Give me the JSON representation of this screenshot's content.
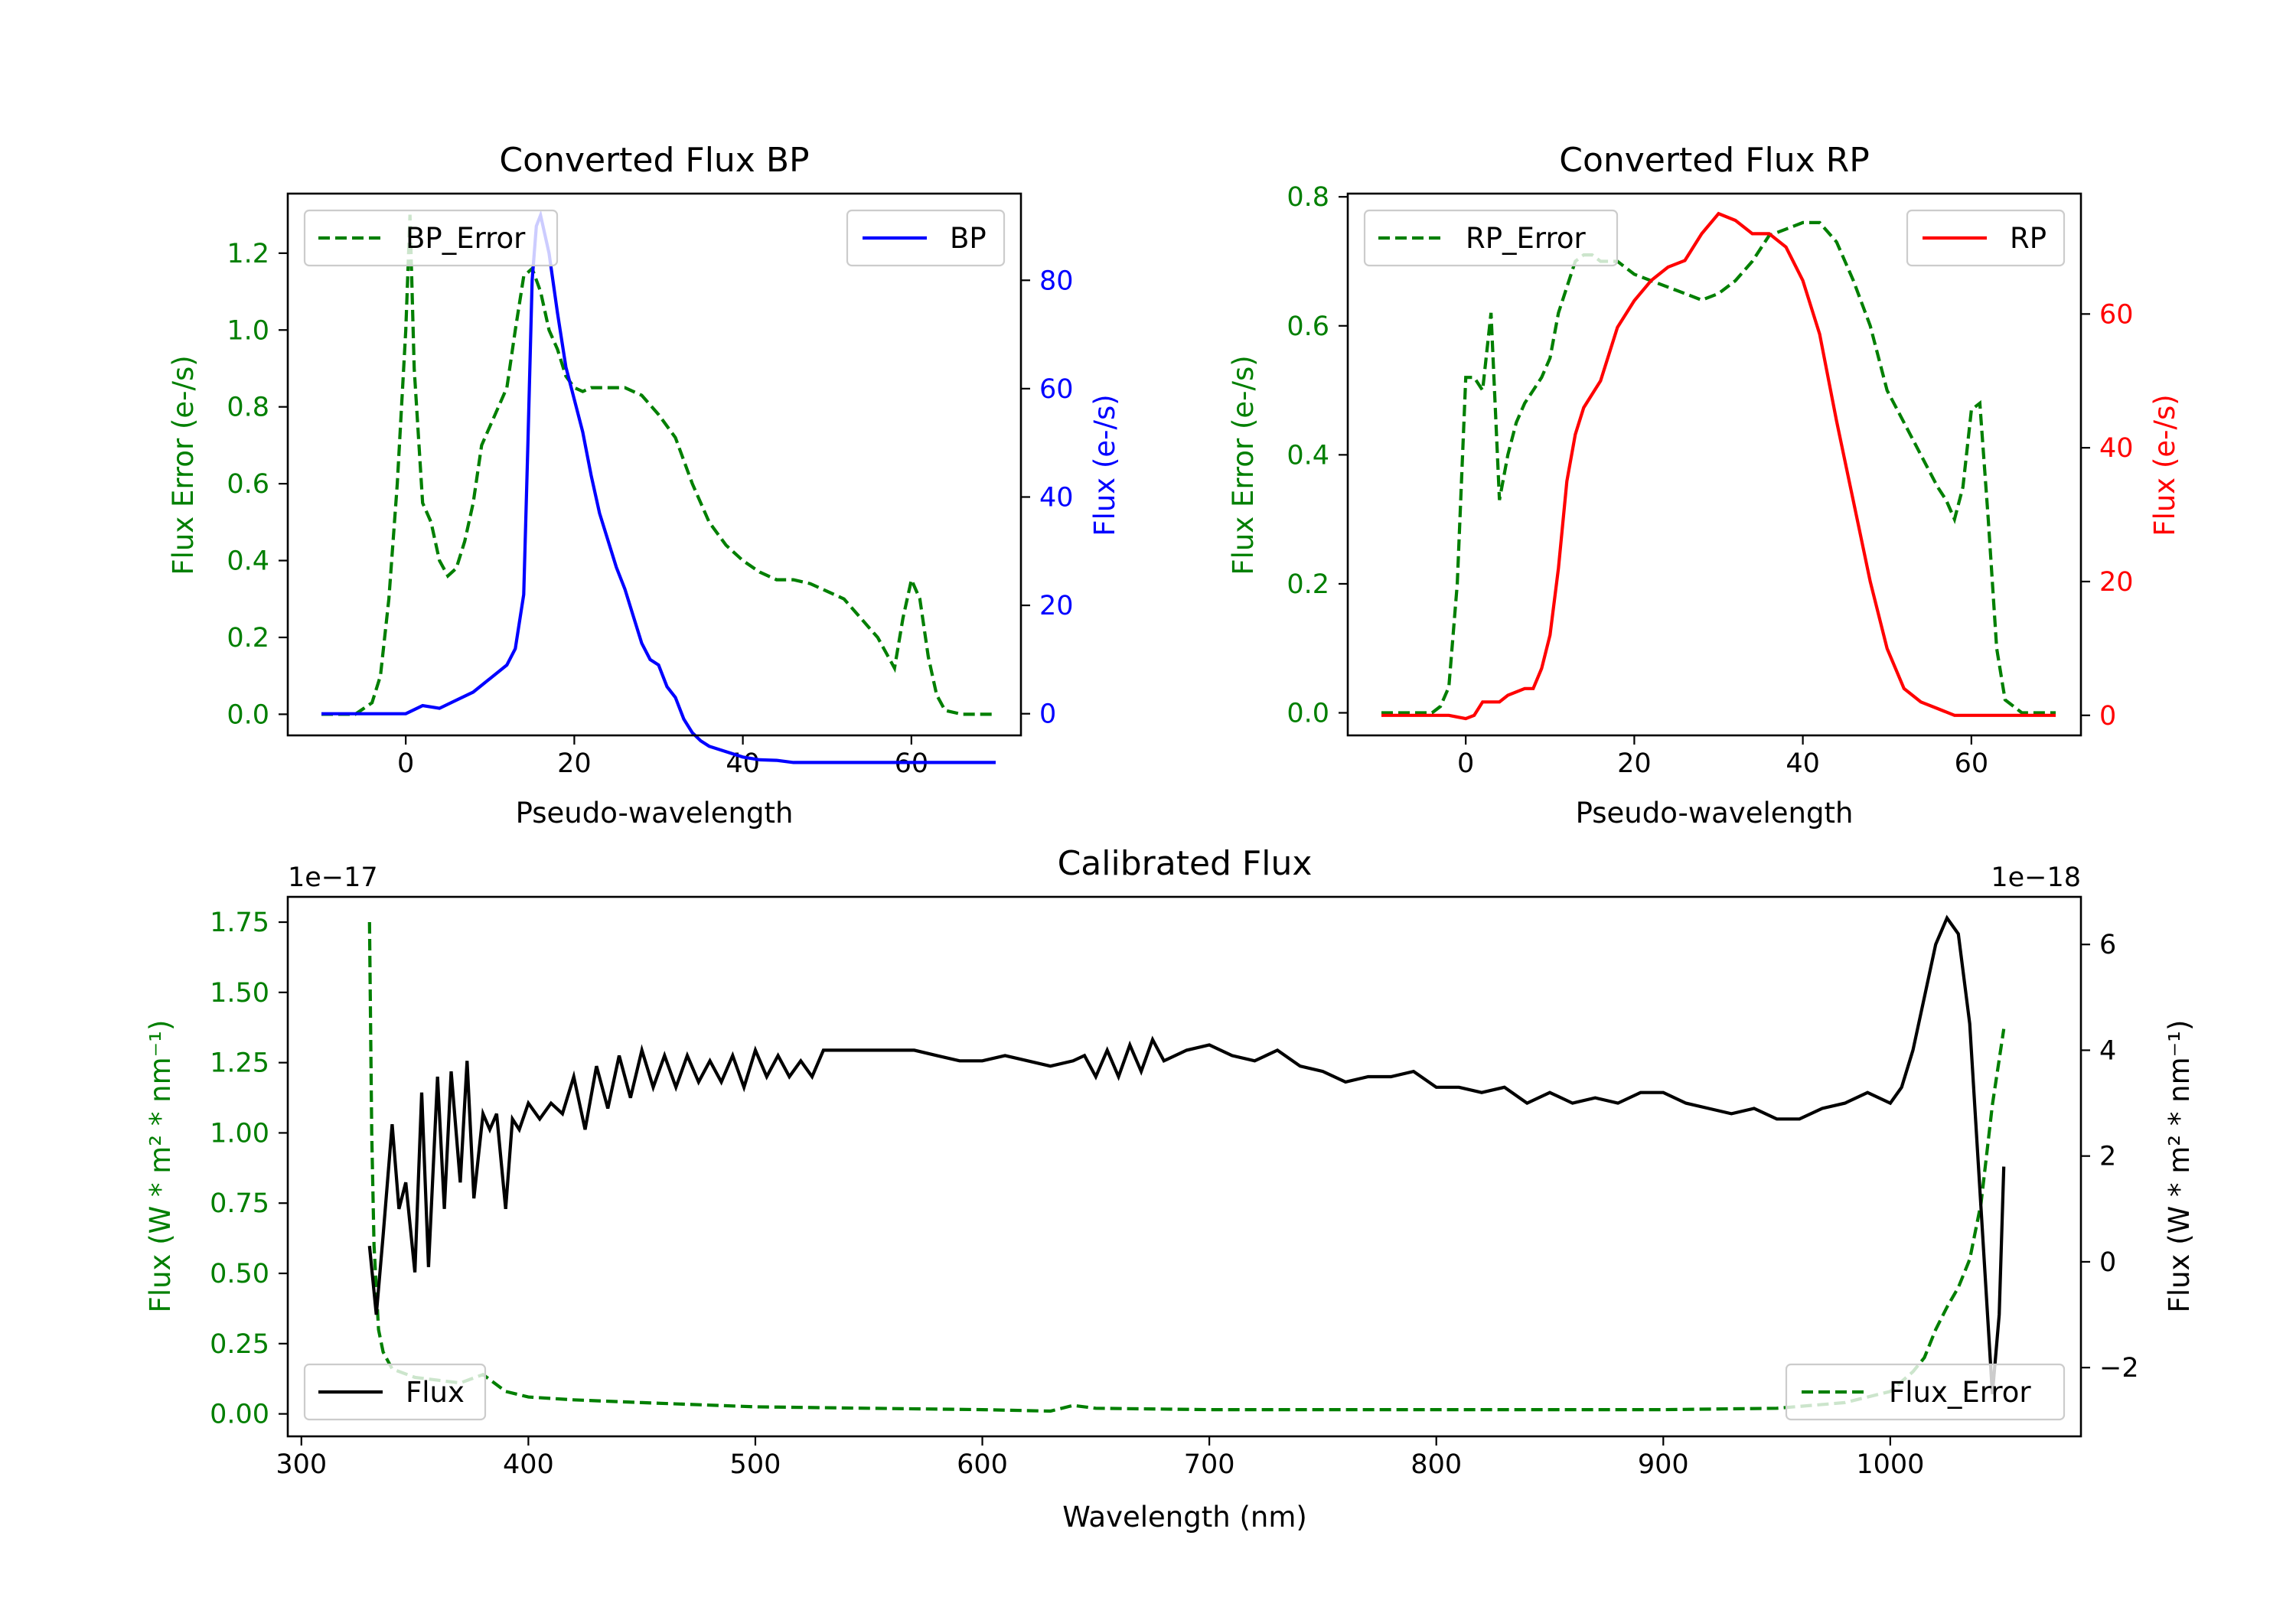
{
  "colors": {
    "green": "#007f00",
    "blue": "#0000ff",
    "red": "#ff0000",
    "black": "#000000"
  },
  "chart_data": [
    {
      "id": "bp",
      "type": "line",
      "title": "Converted Flux BP",
      "xlabel": "Pseudo-wavelength",
      "ylabel_left": "Flux Error (e-/s)",
      "ylabel_right": "Flux (e-/s)",
      "xlim": [
        -14,
        73
      ],
      "ylim_left": [
        -0.055,
        1.355
      ],
      "ylim_right": [
        -4,
        96
      ],
      "xticks": [
        0,
        20,
        40,
        60
      ],
      "yticks_left": [
        "0.0",
        "0.2",
        "0.4",
        "0.6",
        "0.8",
        "1.0",
        "1.2"
      ],
      "yticks_right": [
        "0",
        "20",
        "40",
        "60",
        "80"
      ],
      "series": [
        {
          "name": "BP_Error",
          "axis": "left",
          "style": "dashed",
          "color": "#007f00",
          "x": [
            -10,
            -6,
            -4,
            -3,
            -2,
            -1,
            0,
            0.5,
            1,
            2,
            3,
            4,
            5,
            6,
            7,
            8,
            9,
            10,
            11,
            12,
            13,
            14,
            15,
            16,
            17,
            18,
            19,
            20,
            21,
            22,
            24,
            26,
            28,
            30,
            32,
            34,
            36,
            38,
            40,
            42,
            44,
            46,
            48,
            50,
            52,
            54,
            56,
            57,
            58,
            59,
            60,
            61,
            62,
            63,
            64,
            66,
            70
          ],
          "y": [
            0,
            0,
            0.03,
            0.1,
            0.3,
            0.6,
            1.0,
            1.3,
            0.9,
            0.55,
            0.5,
            0.4,
            0.36,
            0.38,
            0.45,
            0.55,
            0.7,
            0.75,
            0.8,
            0.85,
            1.0,
            1.14,
            1.16,
            1.1,
            1.0,
            0.95,
            0.88,
            0.85,
            0.84,
            0.85,
            0.85,
            0.85,
            0.83,
            0.78,
            0.72,
            0.6,
            0.5,
            0.44,
            0.4,
            0.37,
            0.35,
            0.35,
            0.34,
            0.32,
            0.3,
            0.25,
            0.2,
            0.16,
            0.12,
            0.25,
            0.35,
            0.3,
            0.15,
            0.05,
            0.01,
            0,
            0
          ]
        },
        {
          "name": "BP",
          "axis": "right",
          "style": "solid",
          "color": "#0000ff",
          "x": [
            -10,
            -4,
            -2,
            0,
            2,
            4,
            6,
            8,
            10,
            12,
            13,
            14,
            14.5,
            15,
            15.5,
            16,
            17,
            18,
            19,
            20,
            21,
            22,
            23,
            24,
            25,
            26,
            27,
            28,
            29,
            30,
            31,
            32,
            33,
            34,
            35,
            36,
            38,
            40,
            42,
            44,
            46,
            48,
            50,
            52,
            54,
            56,
            58,
            60,
            62,
            64,
            66,
            70
          ],
          "y": [
            0,
            0,
            0,
            0,
            1.5,
            1,
            2.5,
            4,
            6.5,
            9,
            12,
            22,
            50,
            80,
            90,
            92,
            85,
            74,
            64,
            58,
            52,
            44,
            37,
            32,
            27,
            23,
            18,
            13,
            10,
            9,
            5,
            3,
            -1,
            -3.5,
            -5,
            -6,
            -7,
            -8,
            -8.5,
            -8.6,
            -9,
            -9,
            -9,
            -9,
            -9,
            -9,
            -9,
            -9,
            -9,
            -9,
            -9,
            -9
          ]
        }
      ],
      "legend": [
        {
          "label": "BP_Error",
          "placement": "upper-left"
        },
        {
          "label": "BP",
          "placement": "upper-right"
        }
      ]
    },
    {
      "id": "rp",
      "type": "line",
      "title": "Converted Flux RP",
      "xlabel": "Pseudo-wavelength",
      "ylabel_left": "Flux Error (e-/s)",
      "ylabel_right": "Flux (e-/s)",
      "xlim": [
        -14,
        73
      ],
      "ylim_left": [
        -0.035,
        0.805
      ],
      "ylim_right": [
        -3,
        78
      ],
      "xticks": [
        0,
        20,
        40,
        60
      ],
      "yticks_left": [
        "0.0",
        "0.2",
        "0.4",
        "0.6",
        "0.8"
      ],
      "yticks_right": [
        "0",
        "20",
        "40",
        "60"
      ],
      "series": [
        {
          "name": "RP_Error",
          "axis": "left",
          "style": "dashed",
          "color": "#007f00",
          "x": [
            -10,
            -4,
            -3,
            -2,
            -1,
            0,
            1,
            2,
            3,
            4,
            5,
            6,
            7,
            8,
            9,
            10,
            11,
            12,
            13,
            14,
            15,
            16,
            18,
            20,
            22,
            24,
            26,
            28,
            30,
            32,
            34,
            36,
            38,
            40,
            42,
            44,
            46,
            48,
            50,
            52,
            54,
            56,
            57,
            58,
            59,
            60,
            61,
            62,
            63,
            64,
            66,
            70
          ],
          "y": [
            0,
            0,
            0.01,
            0.04,
            0.2,
            0.52,
            0.52,
            0.5,
            0.62,
            0.33,
            0.4,
            0.45,
            0.48,
            0.5,
            0.52,
            0.55,
            0.62,
            0.66,
            0.7,
            0.71,
            0.71,
            0.7,
            0.7,
            0.68,
            0.67,
            0.66,
            0.65,
            0.64,
            0.65,
            0.67,
            0.7,
            0.74,
            0.75,
            0.76,
            0.76,
            0.73,
            0.67,
            0.6,
            0.5,
            0.45,
            0.4,
            0.35,
            0.33,
            0.3,
            0.35,
            0.47,
            0.48,
            0.3,
            0.1,
            0.02,
            0,
            0
          ]
        },
        {
          "name": "RP",
          "axis": "right",
          "style": "solid",
          "color": "#ff0000",
          "x": [
            -10,
            -4,
            -2,
            0,
            1,
            2,
            3,
            4,
            5,
            6,
            7,
            8,
            9,
            10,
            11,
            12,
            13,
            14,
            16,
            18,
            20,
            22,
            24,
            26,
            28,
            30,
            32,
            34,
            36,
            38,
            40,
            42,
            44,
            46,
            48,
            50,
            52,
            54,
            56,
            58,
            60,
            62,
            64,
            66,
            70
          ],
          "y": [
            0,
            0,
            0,
            -0.5,
            0,
            2,
            2,
            2,
            3,
            3.5,
            4,
            4,
            7,
            12,
            22,
            35,
            42,
            46,
            50,
            58,
            62,
            65,
            67,
            68,
            72,
            75,
            74,
            72,
            72,
            70,
            65,
            57,
            44,
            32,
            20,
            10,
            4,
            2,
            1,
            0,
            0,
            0,
            0,
            0,
            0
          ]
        }
      ],
      "legend": [
        {
          "label": "RP_Error",
          "placement": "upper-left"
        },
        {
          "label": "RP",
          "placement": "upper-right"
        }
      ]
    },
    {
      "id": "cal",
      "type": "line",
      "title": "Calibrated Flux",
      "xlabel": "Wavelength (nm)",
      "ylabel_left": "Flux (W * m² * nm⁻¹)",
      "ylabel_right": "Flux (W * m² * nm⁻¹)",
      "left_offset_text": "1e−17",
      "right_offset_text": "1e−18",
      "xlim": [
        294,
        1084
      ],
      "ylim_left": [
        -0.08,
        1.84
      ],
      "ylim_right": [
        -3.3,
        6.9
      ],
      "xticks": [
        300,
        400,
        500,
        600,
        700,
        800,
        900,
        1000
      ],
      "yticks_left": [
        "0.00",
        "0.25",
        "0.50",
        "0.75",
        "1.00",
        "1.25",
        "1.50",
        "1.75"
      ],
      "yticks_right": [
        "−2",
        "0",
        "2",
        "4",
        "6"
      ],
      "series": [
        {
          "name": "Flux_Error",
          "axis": "left",
          "style": "dashed",
          "color": "#007f00",
          "x": [
            330,
            331,
            332,
            334,
            336,
            340,
            350,
            360,
            370,
            380,
            390,
            400,
            420,
            450,
            500,
            550,
            600,
            630,
            640,
            650,
            700,
            750,
            800,
            850,
            900,
            950,
            980,
            1000,
            1010,
            1015,
            1020,
            1025,
            1030,
            1035,
            1040,
            1045,
            1050
          ],
          "y": [
            1.75,
            1.0,
            0.6,
            0.3,
            0.22,
            0.16,
            0.13,
            0.12,
            0.11,
            0.14,
            0.08,
            0.06,
            0.05,
            0.04,
            0.025,
            0.02,
            0.015,
            0.01,
            0.03,
            0.02,
            0.015,
            0.015,
            0.015,
            0.015,
            0.015,
            0.02,
            0.04,
            0.08,
            0.15,
            0.2,
            0.3,
            0.38,
            0.45,
            0.55,
            0.75,
            1.1,
            1.37
          ]
        },
        {
          "name": "Flux",
          "axis": "right",
          "style": "solid",
          "color": "#000000",
          "x": [
            330,
            333,
            336,
            340,
            343,
            346,
            350,
            353,
            356,
            360,
            363,
            366,
            370,
            373,
            376,
            380,
            383,
            386,
            390,
            393,
            396,
            400,
            405,
            410,
            415,
            420,
            425,
            430,
            435,
            440,
            445,
            450,
            455,
            460,
            465,
            470,
            475,
            480,
            485,
            490,
            495,
            500,
            505,
            510,
            515,
            520,
            525,
            530,
            540,
            550,
            560,
            570,
            580,
            590,
            600,
            610,
            620,
            630,
            640,
            645,
            650,
            655,
            660,
            665,
            670,
            675,
            680,
            690,
            700,
            710,
            720,
            730,
            740,
            750,
            760,
            770,
            780,
            790,
            800,
            810,
            820,
            830,
            840,
            850,
            860,
            870,
            880,
            890,
            900,
            910,
            920,
            930,
            940,
            950,
            960,
            970,
            980,
            990,
            1000,
            1005,
            1010,
            1015,
            1020,
            1025,
            1030,
            1035,
            1040,
            1045,
            1048,
            1050
          ],
          "y": [
            0.3,
            -1.0,
            0.5,
            2.6,
            1.0,
            1.5,
            -0.2,
            3.2,
            -0.1,
            3.5,
            1.0,
            3.6,
            1.5,
            3.8,
            1.2,
            2.8,
            2.5,
            2.8,
            1.0,
            2.7,
            2.5,
            3.0,
            2.7,
            3.0,
            2.8,
            3.5,
            2.5,
            3.7,
            2.9,
            3.9,
            3.1,
            4.0,
            3.3,
            3.9,
            3.3,
            3.9,
            3.4,
            3.8,
            3.4,
            3.9,
            3.3,
            4.0,
            3.5,
            3.9,
            3.5,
            3.8,
            3.5,
            4.0,
            4.0,
            4.0,
            4.0,
            4.0,
            3.9,
            3.8,
            3.8,
            3.9,
            3.8,
            3.7,
            3.8,
            3.9,
            3.5,
            4.0,
            3.5,
            4.1,
            3.6,
            4.2,
            3.8,
            4.0,
            4.1,
            3.9,
            3.8,
            4.0,
            3.7,
            3.6,
            3.4,
            3.5,
            3.5,
            3.6,
            3.3,
            3.3,
            3.2,
            3.3,
            3.0,
            3.2,
            3.0,
            3.1,
            3.0,
            3.2,
            3.2,
            3.0,
            2.9,
            2.8,
            2.9,
            2.7,
            2.7,
            2.9,
            3.0,
            3.2,
            3.0,
            3.3,
            4.0,
            5.0,
            6.0,
            6.5,
            6.2,
            4.5,
            1.0,
            -2.5,
            -1.0,
            1.8
          ]
        }
      ],
      "legend": [
        {
          "label": "Flux",
          "placement": "lower-left"
        },
        {
          "label": "Flux_Error",
          "placement": "lower-right"
        }
      ]
    }
  ]
}
